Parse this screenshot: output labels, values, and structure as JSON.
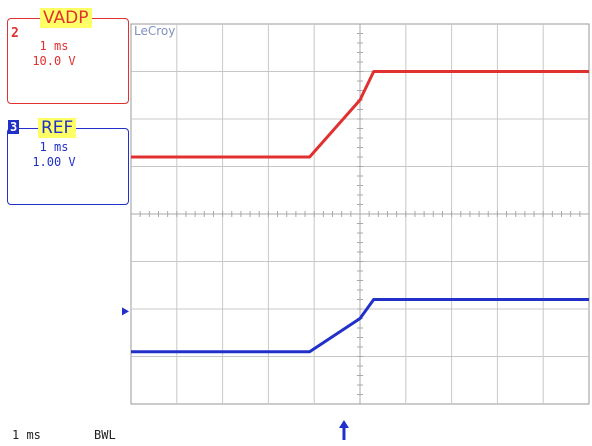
{
  "brand": "LeCroy",
  "channels": [
    {
      "number": "2",
      "name": "VADP",
      "time_div": "1 ms",
      "volt_div": "10.0 V",
      "color": "#e03030"
    },
    {
      "number": "3",
      "name": "REF",
      "time_div": "1 ms",
      "volt_div": "1.00 V",
      "color": "#2030c8"
    }
  ],
  "status": {
    "timebase": "1 ms",
    "bandwidth_limit": "BWL"
  },
  "chart_data": {
    "type": "line",
    "title": "",
    "xlabel": "",
    "ylabel": "",
    "x_unit": "ms",
    "xlim": [
      -5,
      5
    ],
    "ylim": [
      -4,
      4
    ],
    "grid": true,
    "series": [
      {
        "name": "VADP",
        "color": "#e03030",
        "x": [
          -5.0,
          -1.1,
          0.0,
          0.3,
          5.0
        ],
        "y": [
          1.2,
          1.2,
          2.4,
          3.0,
          3.0
        ]
      },
      {
        "name": "REF",
        "color": "#2030c8",
        "x": [
          -5.0,
          -1.1,
          0.0,
          0.3,
          5.0
        ],
        "y": [
          -2.9,
          -2.9,
          -2.2,
          -1.8,
          -1.8
        ]
      }
    ],
    "markers": {
      "trigger_time": -0.35,
      "ref_level": -2.05
    }
  }
}
